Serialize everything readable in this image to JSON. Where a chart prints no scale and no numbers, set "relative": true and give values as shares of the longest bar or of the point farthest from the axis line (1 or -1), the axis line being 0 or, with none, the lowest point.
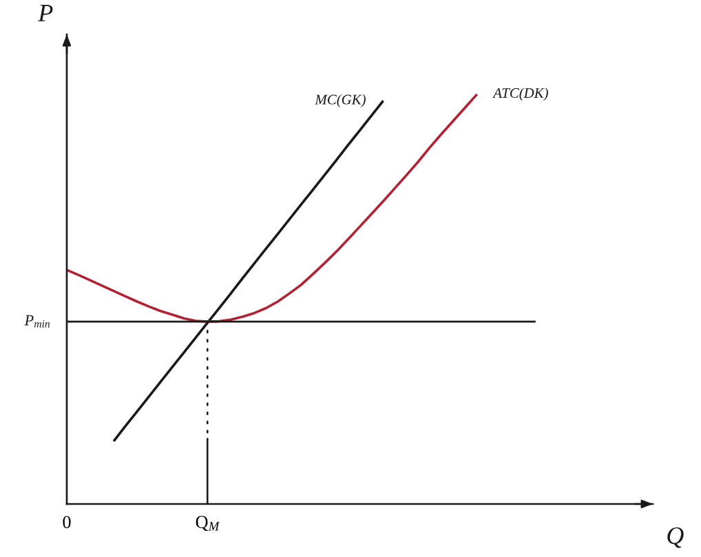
{
  "chart_data": {
    "type": "line",
    "relative": true,
    "xlabel": "Q",
    "ylabel": "P",
    "categories": [
      "0",
      null,
      null,
      null,
      null,
      null,
      null,
      null,
      null,
      null,
      null,
      null,
      "Q$_{M}$",
      null,
      null,
      null,
      null,
      null,
      null,
      null,
      null,
      null,
      null,
      null,
      null,
      null,
      null,
      null,
      null,
      null,
      null,
      null,
      null,
      null,
      null,
      null,
      null,
      null,
      null,
      null,
      null,
      null,
      null,
      null,
      null,
      null,
      null,
      null,
      null,
      null,
      null
    ],
    "annotations": [
      "P$_{min}$"
    ],
    "series": [
      {
        "name": "MC(GK)",
        "color": "#1a1a1a",
        "values": [
          null,
          null,
          null,
          null,
          0.153,
          0.19,
          0.226,
          0.262,
          0.298,
          0.334,
          0.37,
          0.406,
          0.442,
          0.478,
          0.514,
          0.551,
          0.587,
          0.623,
          0.659,
          0.695,
          0.731,
          0.767,
          0.803,
          0.839,
          0.876,
          0.912,
          0.948,
          0.984,
          null,
          null,
          null,
          null,
          null,
          null,
          null,
          null,
          null,
          null,
          null,
          null,
          null,
          null,
          null,
          null,
          null,
          null,
          null,
          null,
          null,
          null,
          null
        ]
      },
      {
        "name": "ATC(DK)",
        "color": "#b22234",
        "values": [
          0.571,
          0.559,
          0.546,
          0.533,
          0.52,
          0.507,
          0.494,
          0.482,
          0.471,
          0.462,
          0.453,
          0.447,
          0.445,
          0.446,
          0.45,
          0.457,
          0.466,
          0.478,
          0.494,
          0.514,
          0.535,
          0.561,
          0.588,
          0.616,
          0.646,
          0.677,
          0.708,
          0.739,
          0.771,
          0.803,
          0.836,
          0.871,
          0.904,
          0.936,
          0.968,
          1.0,
          null,
          null,
          null,
          null,
          null,
          null,
          null,
          null,
          null,
          null,
          null,
          null,
          null,
          null,
          null
        ]
      },
      {
        "color": "#1a1a1a",
        "values": [
          0.445,
          0.445,
          0.445,
          0.445,
          0.445,
          0.445,
          0.445,
          0.445,
          0.445,
          0.445,
          0.445,
          0.445,
          0.445,
          0.445,
          0.445,
          0.445,
          0.445,
          0.445,
          0.445,
          0.445,
          0.445,
          0.445,
          0.445,
          0.445,
          0.445,
          0.445,
          0.445,
          0.445,
          0.445,
          0.445,
          0.445,
          0.445,
          0.445,
          0.445,
          0.445,
          0.445,
          0.445,
          0.445,
          0.445,
          0.445,
          0.445,
          null,
          null,
          null,
          null,
          null,
          null,
          null,
          null,
          null,
          null
        ]
      },
      {
        "color": "#1a1a1a",
        "line_style": "dotted",
        "x": [
          "Q$_{M}$",
          "Q$_{M}$"
        ],
        "values": [
          0.445,
          0.171
        ]
      },
      {
        "color": "#1a1a1a",
        "x": [
          "Q$_{M}$",
          "Q$_{M}$"
        ],
        "values": [
          0.161,
          0
        ]
      }
    ]
  }
}
